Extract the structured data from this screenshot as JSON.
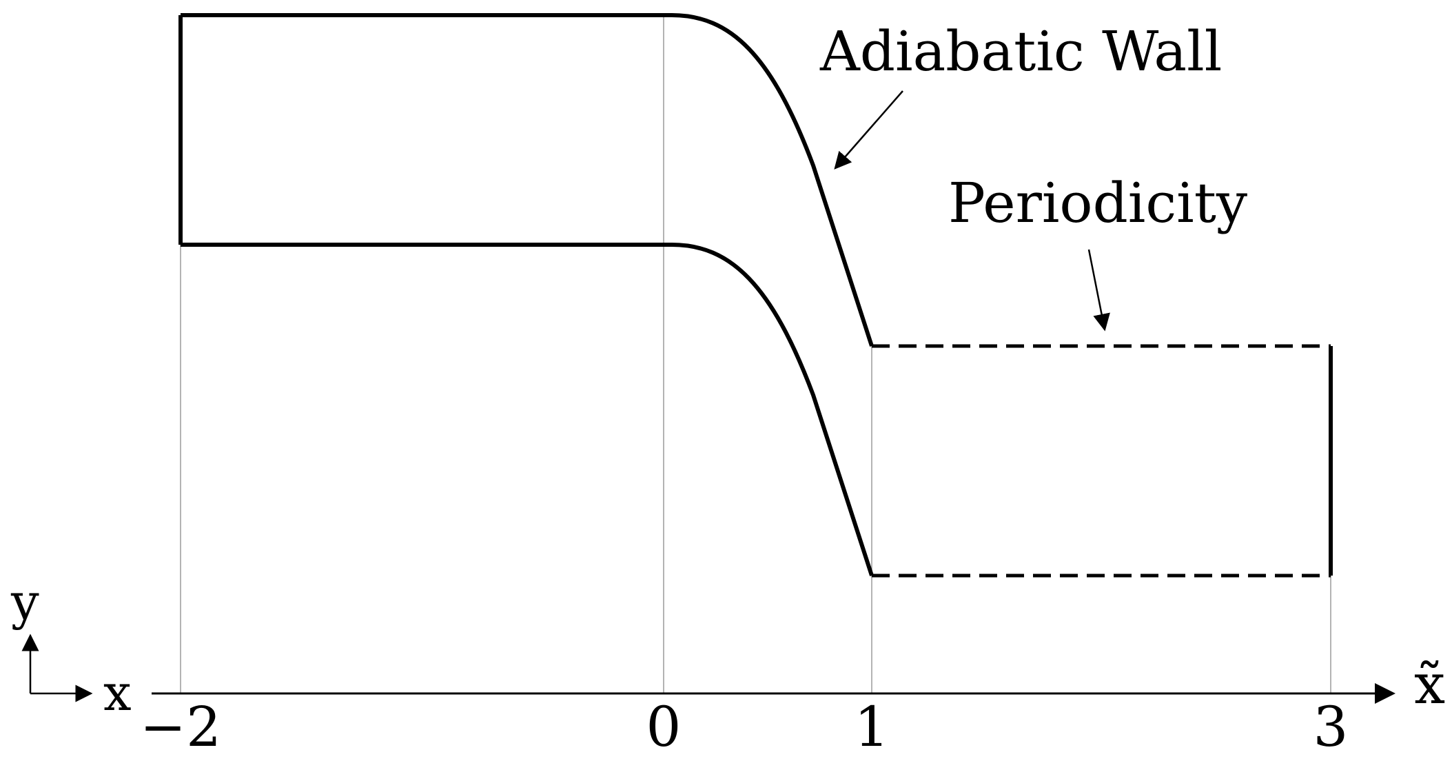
{
  "labels": {
    "adiabatic_wall": "Adiabatic Wall",
    "periodicity": "Periodicity"
  },
  "axes": {
    "x_axis_label": "x̃",
    "frame_x": "x",
    "frame_y": "y",
    "ticks": [
      "−2",
      "0",
      "1",
      "3"
    ]
  },
  "colors": {
    "line": "#000000",
    "guide": "#9a9a9a"
  }
}
